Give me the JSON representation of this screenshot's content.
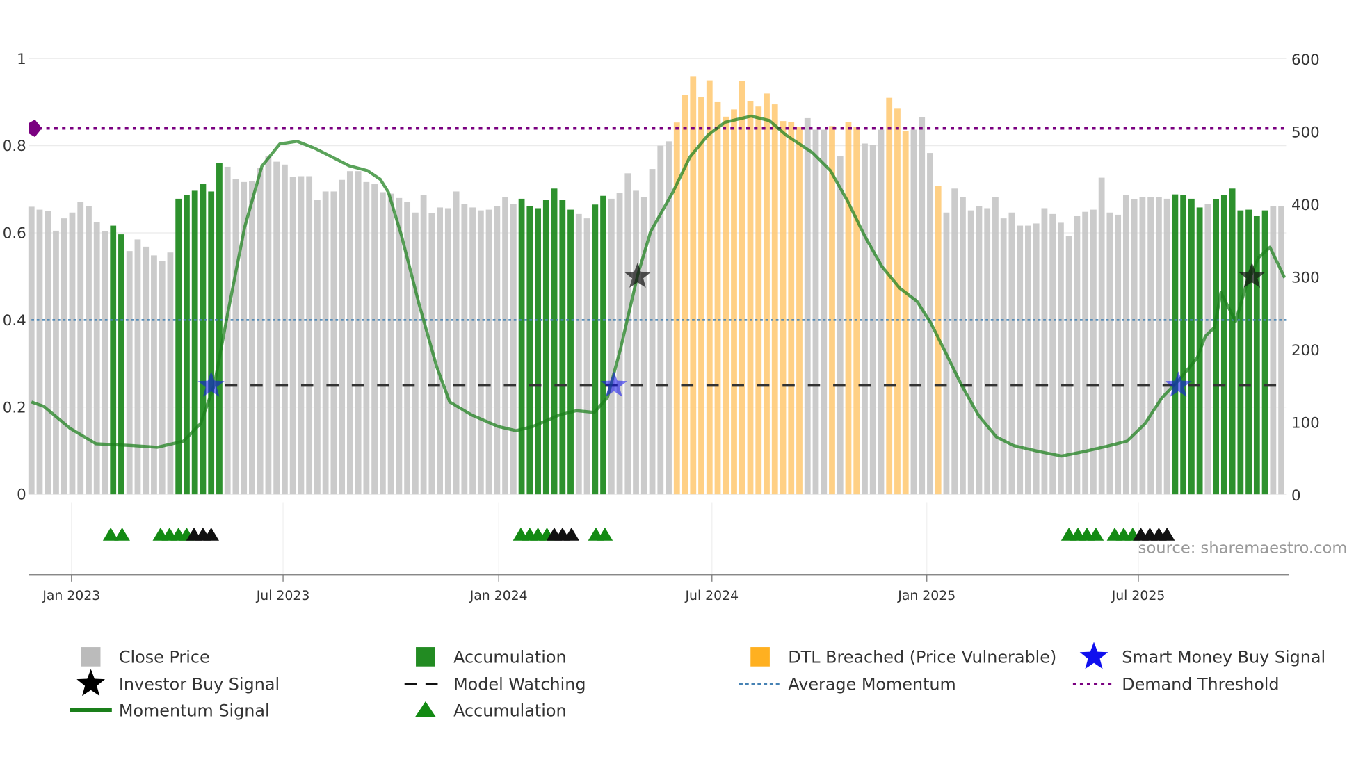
{
  "chart_data": {
    "type": "bar",
    "title": "",
    "x_ticks": [
      {
        "label": "Jan 2023",
        "week": 4.9
      },
      {
        "label": "Jul 2023",
        "week": 30.8
      },
      {
        "label": "Jan 2024",
        "week": 57.2
      },
      {
        "label": "Jul 2024",
        "week": 83.3
      },
      {
        "label": "Jan 2025",
        "week": 109.6
      },
      {
        "label": "Jul 2025",
        "week": 135.5
      }
    ],
    "left_axis": {
      "range": [
        0,
        1
      ],
      "ticks": [
        "0",
        "0.2",
        "0.4",
        "0.6",
        "0.8",
        "1"
      ]
    },
    "right_axis": {
      "range": [
        0,
        600
      ],
      "ticks": [
        "0",
        "100",
        "200",
        "300",
        "400",
        "500",
        "600"
      ]
    },
    "close_price": [
      396,
      392,
      390,
      363,
      380,
      388,
      403,
      397,
      375,
      362,
      370,
      358,
      335,
      351,
      341,
      329,
      321,
      333,
      407,
      412,
      418,
      427,
      417,
      456,
      451,
      434,
      430,
      431,
      449,
      466,
      458,
      454,
      437,
      438,
      438,
      405,
      417,
      417,
      433,
      445,
      445,
      430,
      427,
      416,
      414,
      408,
      403,
      388,
      412,
      387,
      395,
      394,
      417,
      400,
      395,
      391,
      392,
      397,
      409,
      400,
      407,
      397,
      394,
      405,
      421,
      405,
      392,
      386,
      380,
      399,
      411,
      407,
      415,
      442,
      418,
      409,
      448,
      480,
      486,
      512,
      550,
      575,
      547,
      570,
      540,
      520,
      530,
      569,
      541,
      534,
      552,
      537,
      514,
      513,
      506,
      518,
      502,
      502,
      507,
      466,
      513,
      506,
      483,
      481,
      502,
      546,
      531,
      500,
      502,
      519,
      470,
      425,
      388,
      421,
      409,
      391,
      397,
      394,
      409,
      380,
      388,
      370,
      370,
      373,
      394,
      386,
      374,
      356,
      383,
      389,
      392,
      436,
      388,
      385,
      412,
      406,
      409,
      409,
      409,
      407,
      413,
      412,
      407,
      395,
      400,
      406,
      412,
      421,
      391,
      392,
      383,
      391,
      397,
      397
    ],
    "bar_state": "ggggggggggAAggggggAAAAAAggggggggggggggggggggggggggggggggggggAAAAAAAggAAggggggggOOOOOOOOOOOOOOOOgggOgOOgggOOOgggOggggggggggggggggggggggggggggAAAAgAAAAAAAgggggggggggggg",
    "bar_state_legend": {
      "g": "Close Price",
      "A": "Accumulation",
      "O": "DTL Breached (Price Vulnerable)"
    },
    "momentum": [
      [
        0,
        0.212
      ],
      [
        1.5,
        0.202
      ],
      [
        4.7,
        0.152
      ],
      [
        7.9,
        0.116
      ],
      [
        12.2,
        0.112
      ],
      [
        15.4,
        0.108
      ],
      [
        18.6,
        0.122
      ],
      [
        20.7,
        0.162
      ],
      [
        22.4,
        0.252
      ],
      [
        24,
        0.413
      ],
      [
        26.1,
        0.613
      ],
      [
        28.2,
        0.753
      ],
      [
        30.4,
        0.804
      ],
      [
        32.5,
        0.81
      ],
      [
        34.7,
        0.794
      ],
      [
        36.8,
        0.774
      ],
      [
        38.9,
        0.754
      ],
      [
        41.1,
        0.743
      ],
      [
        42.7,
        0.723
      ],
      [
        43.7,
        0.693
      ],
      [
        45.3,
        0.593
      ],
      [
        47.5,
        0.433
      ],
      [
        49.6,
        0.293
      ],
      [
        51.2,
        0.212
      ],
      [
        53.9,
        0.182
      ],
      [
        57.1,
        0.156
      ],
      [
        59.3,
        0.146
      ],
      [
        61.4,
        0.156
      ],
      [
        64.6,
        0.182
      ],
      [
        66.7,
        0.192
      ],
      [
        68.9,
        0.188
      ],
      [
        70.5,
        0.222
      ],
      [
        72.1,
        0.333
      ],
      [
        74.2,
        0.503
      ],
      [
        75.8,
        0.603
      ],
      [
        78.5,
        0.693
      ],
      [
        80.6,
        0.774
      ],
      [
        82.8,
        0.824
      ],
      [
        84.9,
        0.854
      ],
      [
        88.1,
        0.868
      ],
      [
        90.3,
        0.858
      ],
      [
        92.4,
        0.824
      ],
      [
        95.6,
        0.784
      ],
      [
        97.8,
        0.743
      ],
      [
        99.9,
        0.673
      ],
      [
        102,
        0.593
      ],
      [
        104.1,
        0.523
      ],
      [
        106.3,
        0.473
      ],
      [
        108.4,
        0.443
      ],
      [
        110.1,
        0.393
      ],
      [
        111.7,
        0.333
      ],
      [
        113.8,
        0.253
      ],
      [
        115.9,
        0.182
      ],
      [
        118.1,
        0.132
      ],
      [
        120.2,
        0.112
      ],
      [
        123.4,
        0.098
      ],
      [
        126.1,
        0.088
      ],
      [
        128.8,
        0.098
      ],
      [
        132,
        0.112
      ],
      [
        134.1,
        0.122
      ],
      [
        136.3,
        0.162
      ],
      [
        138.4,
        0.222
      ],
      [
        140.5,
        0.263
      ],
      [
        142.7,
        0.313
      ],
      [
        143.7,
        0.363
      ],
      [
        144.8,
        0.383
      ],
      [
        145.6,
        0.463
      ],
      [
        147.4,
        0.397
      ],
      [
        148.6,
        0.473
      ],
      [
        150.2,
        0.543
      ],
      [
        151.6,
        0.567
      ],
      [
        153.4,
        0.497
      ]
    ],
    "demand_threshold": 0.84,
    "average_momentum": 0.4,
    "model_watching": {
      "value": 0.25,
      "start_week": 23.7
    },
    "smart_money_signals": [
      [
        22.0,
        0.25
      ],
      [
        71.3,
        0.25
      ],
      [
        140.4,
        0.25
      ]
    ],
    "investor_signals": [
      [
        74.2,
        0.5
      ],
      [
        149.4,
        0.5
      ]
    ],
    "accumulation_markers": {
      "green": [
        9.7,
        11.1,
        15.8,
        16.9,
        18,
        19,
        59.9,
        61,
        62,
        63.1,
        69.1,
        70.2,
        127,
        128.1,
        129.2,
        130.3,
        132.6,
        133.7,
        134.8
      ],
      "black": [
        19.9,
        21,
        22,
        64,
        65,
        66.1,
        135.8,
        136.9,
        138,
        139
      ]
    },
    "legend": [
      {
        "label": "Close Price",
        "kind": "gray-square"
      },
      {
        "label": "Accumulation",
        "kind": "green-square"
      },
      {
        "label": "DTL Breached (Price Vulnerable)",
        "kind": "orange-square"
      },
      {
        "label": "Smart Money Buy Signal",
        "kind": "blue-star"
      },
      {
        "label": "Investor Buy Signal",
        "kind": "black-star"
      },
      {
        "label": "Model Watching",
        "kind": "dashed-black"
      },
      {
        "label": "Average Momentum",
        "kind": "dotted-blue"
      },
      {
        "label": "Demand Threshold",
        "kind": "dotted-purple"
      },
      {
        "label": "Momentum Signal",
        "kind": "green-line"
      },
      {
        "label": "Accumulation",
        "kind": "green-triangle"
      }
    ],
    "source": "source: sharemaestro.com",
    "colors": {
      "gray": "#c8c8c8",
      "green": "#228b22",
      "orange": "#ffc870",
      "momentum": "#1a7f1a",
      "purple": "#7a0080",
      "avg": "#4682b4",
      "blue": "#1010ee"
    }
  }
}
